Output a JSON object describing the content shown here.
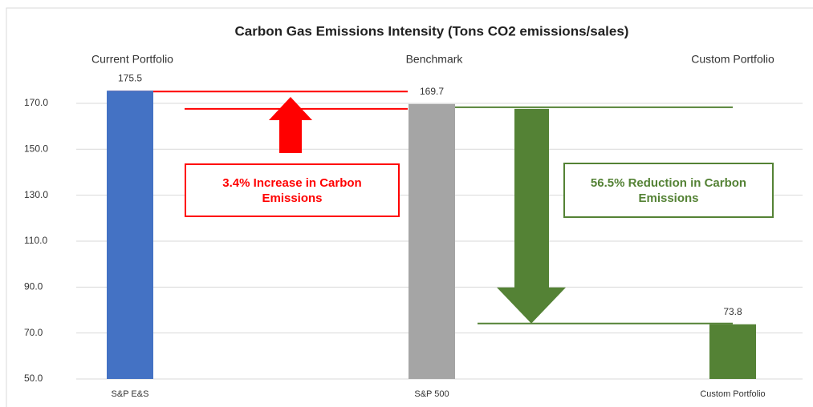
{
  "chart_data": {
    "type": "bar",
    "title": "Carbon Gas Emissions Intensity (Tons CO2 emissions/sales)",
    "group_labels": [
      "Current Portfolio",
      "Benchmark",
      "Custom Portfolio"
    ],
    "categories": [
      "S&P E&S",
      "S&P 500",
      "Custom Portfolio"
    ],
    "values": [
      175.5,
      169.7,
      73.8
    ],
    "colors": [
      "#4472c4",
      "#a5a5a5",
      "#548235"
    ],
    "ylim": [
      50,
      180
    ],
    "yticks": [
      {
        "value": 50,
        "label": "50.0"
      },
      {
        "value": 70,
        "label": "70.0"
      },
      {
        "value": 90,
        "label": "90.0"
      },
      {
        "value": 110,
        "label": "110.0"
      },
      {
        "value": 130,
        "label": "130.0"
      },
      {
        "value": 150,
        "label": "150.0"
      },
      {
        "value": 170,
        "label": "170.0"
      }
    ],
    "grid": true,
    "annotations": [
      {
        "text": "3.4% Increase in Carbon Emissions",
        "color": "#ff0000"
      },
      {
        "text": "56.5% Reduction in Carbon Emissions",
        "color": "#548235"
      }
    ]
  }
}
